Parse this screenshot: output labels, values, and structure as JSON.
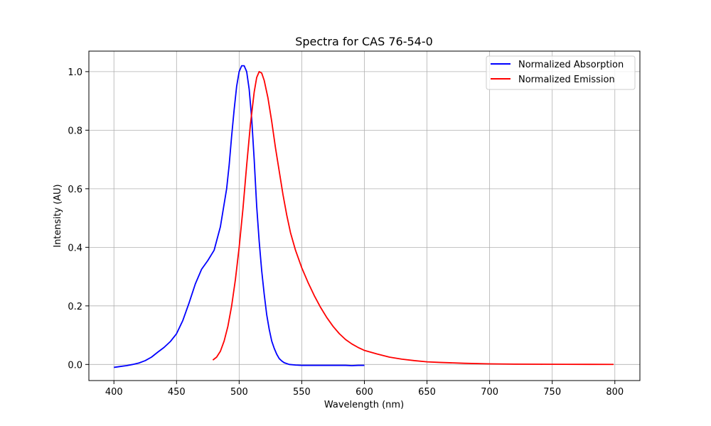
{
  "chart_data": {
    "type": "line",
    "title": "Spectra for CAS 76-54-0",
    "xlabel": "Wavelength (nm)",
    "ylabel": "Intensity (AU)",
    "xlim": [
      380,
      820
    ],
    "ylim": [
      -0.055,
      1.07
    ],
    "xticks": [
      400,
      450,
      500,
      550,
      600,
      650,
      700,
      750,
      800
    ],
    "yticks": [
      0.0,
      0.2,
      0.4,
      0.6,
      0.8,
      1.0
    ],
    "grid": true,
    "legend_position": "top-right",
    "series": [
      {
        "name": "Normalized Absorption",
        "color": "#0000ff",
        "x": [
          400,
          405,
          410,
          415,
          420,
          425,
          430,
          435,
          440,
          445,
          450,
          455,
          460,
          465,
          470,
          475,
          480,
          485,
          490,
          492,
          494,
          496,
          498,
          500,
          502,
          504,
          506,
          508,
          510,
          512,
          514,
          516,
          518,
          520,
          522,
          524,
          526,
          528,
          530,
          532,
          534,
          536,
          540,
          545,
          550,
          555,
          560,
          565,
          570,
          575,
          580,
          585,
          590,
          595,
          600
        ],
        "y": [
          -0.01,
          -0.007,
          -0.004,
          0.0,
          0.005,
          0.013,
          0.025,
          0.042,
          0.058,
          0.078,
          0.105,
          0.15,
          0.21,
          0.275,
          0.325,
          0.355,
          0.39,
          0.47,
          0.6,
          0.68,
          0.78,
          0.87,
          0.95,
          1.0,
          1.02,
          1.02,
          1.0,
          0.94,
          0.84,
          0.7,
          0.54,
          0.42,
          0.32,
          0.24,
          0.17,
          0.12,
          0.08,
          0.055,
          0.035,
          0.02,
          0.012,
          0.006,
          0.0,
          -0.002,
          -0.003,
          -0.003,
          -0.003,
          -0.003,
          -0.003,
          -0.003,
          -0.003,
          -0.003,
          -0.004,
          -0.003,
          -0.003
        ]
      },
      {
        "name": "Normalized Emission",
        "color": "#ff0000",
        "x": [
          479,
          482,
          485,
          488,
          491,
          494,
          497,
          500,
          503,
          506,
          509,
          512,
          514,
          516,
          518,
          520,
          523,
          526,
          529,
          532,
          535,
          538,
          541,
          545,
          550,
          555,
          560,
          565,
          570,
          575,
          580,
          585,
          590,
          595,
          600,
          610,
          620,
          630,
          640,
          650,
          660,
          680,
          700,
          720,
          740,
          760,
          780,
          799
        ],
        "y": [
          0.015,
          0.025,
          0.045,
          0.08,
          0.13,
          0.2,
          0.29,
          0.4,
          0.53,
          0.68,
          0.82,
          0.93,
          0.98,
          1.0,
          0.995,
          0.97,
          0.91,
          0.83,
          0.74,
          0.66,
          0.58,
          0.51,
          0.45,
          0.39,
          0.33,
          0.28,
          0.235,
          0.195,
          0.16,
          0.13,
          0.105,
          0.085,
          0.07,
          0.058,
          0.048,
          0.036,
          0.025,
          0.018,
          0.013,
          0.009,
          0.007,
          0.004,
          0.002,
          0.001,
          0.0007,
          0.0005,
          0.0003,
          0.0002
        ]
      }
    ]
  }
}
